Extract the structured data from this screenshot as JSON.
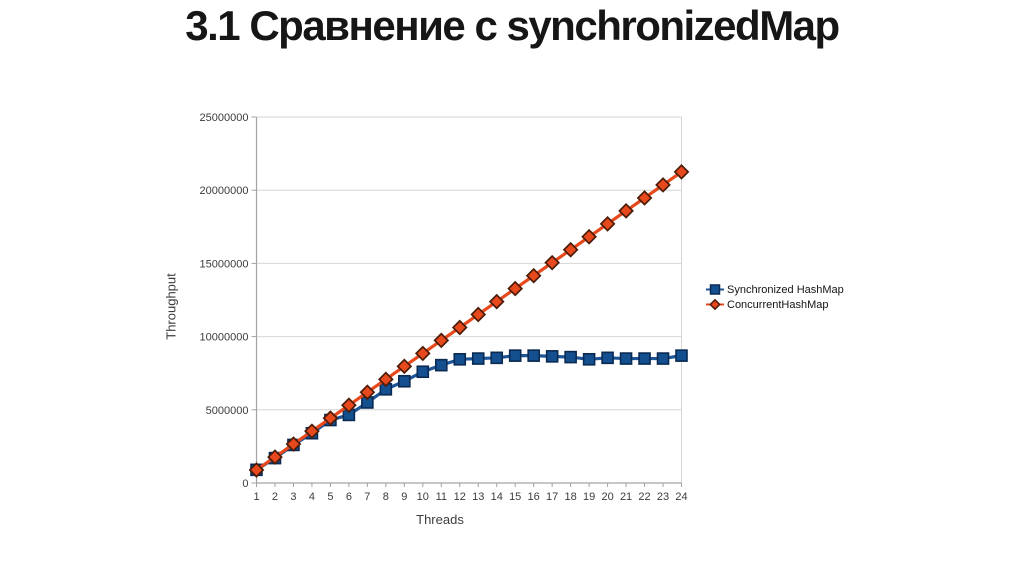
{
  "title": "3.1 Сравнение с synchronizedMap",
  "chart_data": {
    "type": "line",
    "title": "",
    "xlabel": "Threads",
    "ylabel": "Throughput",
    "ylim": [
      0,
      25000000
    ],
    "yticks": [
      0,
      5000000,
      10000000,
      15000000,
      20000000,
      25000000
    ],
    "ytick_labels": [
      "0",
      "5000000",
      "10000000",
      "15000000",
      "20000000",
      "25000000"
    ],
    "categories": [
      "1",
      "2",
      "3",
      "4",
      "5",
      "6",
      "7",
      "8",
      "9",
      "10",
      "11",
      "12",
      "13",
      "14",
      "15",
      "16",
      "17",
      "18",
      "19",
      "20",
      "21",
      "22",
      "23",
      "24"
    ],
    "grid": true,
    "legend_position": "right",
    "series": [
      {
        "name": "Synchronized HashMap",
        "marker": "square",
        "color": "#14508F",
        "stroke": "#0A2A52",
        "line_color": "#1D5596",
        "values": [
          900000,
          1700000,
          2600000,
          3400000,
          4300000,
          4650000,
          5500000,
          6400000,
          6950000,
          7600000,
          8050000,
          8450000,
          8500000,
          8550000,
          8700000,
          8700000,
          8650000,
          8600000,
          8450000,
          8550000,
          8500000,
          8500000,
          8500000,
          8700000
        ]
      },
      {
        "name": "ConcurrentHashMap",
        "marker": "diamond",
        "color": "#E8491C",
        "stroke": "#4A1C08",
        "line_color": "#E8491C",
        "values": [
          890000,
          1770000,
          2660000,
          3540000,
          4430000,
          5310000,
          6200000,
          7080000,
          7970000,
          8850000,
          9740000,
          10620000,
          11510000,
          12390000,
          13280000,
          14160000,
          15050000,
          15930000,
          16820000,
          17700000,
          18590000,
          19470000,
          20360000,
          21250000
        ]
      }
    ]
  },
  "colors": {
    "grid": "#D6D6D6",
    "plot_border": "#D6D6D6",
    "axis": "#A3A3A3",
    "tick_text": "#3C3C3C",
    "title_text": "#161616"
  }
}
